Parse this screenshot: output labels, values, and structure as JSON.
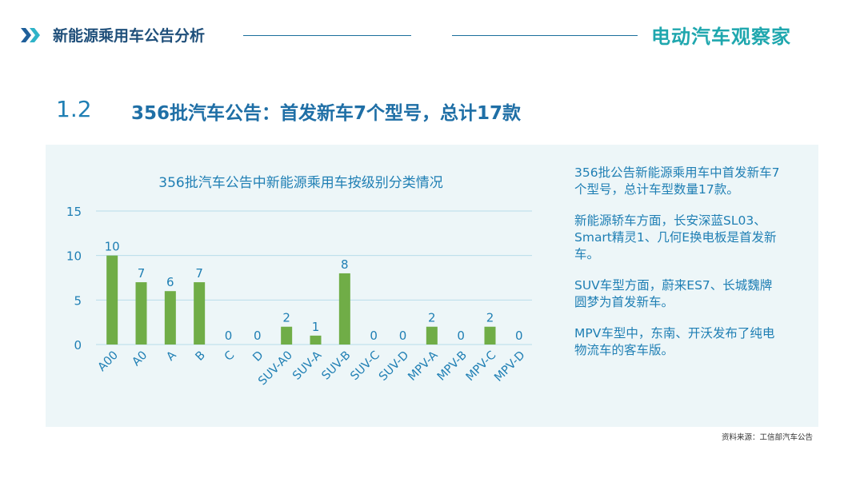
{
  "header": {
    "title": "新能源乘用车公告分析",
    "brand": "电动汽车观察家",
    "colors": {
      "title": "#1f4f7a",
      "brand": "#1fa7ae",
      "accent": "#1fa7ae"
    }
  },
  "section": {
    "number": "1.2",
    "title": "356批汽车公告：首发新车7个型号，总计17款"
  },
  "chart_data": {
    "type": "bar",
    "title": "356批汽车公告中新能源乘用车按级别分类情况",
    "categories": [
      "A00",
      "A0",
      "A",
      "B",
      "C",
      "D",
      "SUV-A0",
      "SUV-A",
      "SUV-B",
      "SUV-C",
      "SUV-D",
      "MPV-A",
      "MPV-B",
      "MPV-C",
      "MPV-D"
    ],
    "values": [
      10,
      7,
      6,
      7,
      0,
      0,
      2,
      1,
      8,
      0,
      0,
      2,
      0,
      2,
      0
    ],
    "yticks": [
      0,
      5,
      10,
      15
    ],
    "ylim": [
      0,
      15
    ],
    "grid": true,
    "bar_color": "#70ad47",
    "text_color": "#1f7fb4",
    "grid_color": "#b8dcea"
  },
  "notes": [
    "356批公告新能源乘用车中首发新车7个型号，总计车型数量17款。",
    "新能源轿车方面，长安深蓝SL03、Smart精灵1、几何E换电板是首发新车。",
    "SUV车型方面，蔚来ES7、长城魏牌圆梦为首发新车。",
    "MPV车型中，东南、开沃发布了纯电物流车的客车版。"
  ],
  "source": "资料来源：工信部汽车公告"
}
